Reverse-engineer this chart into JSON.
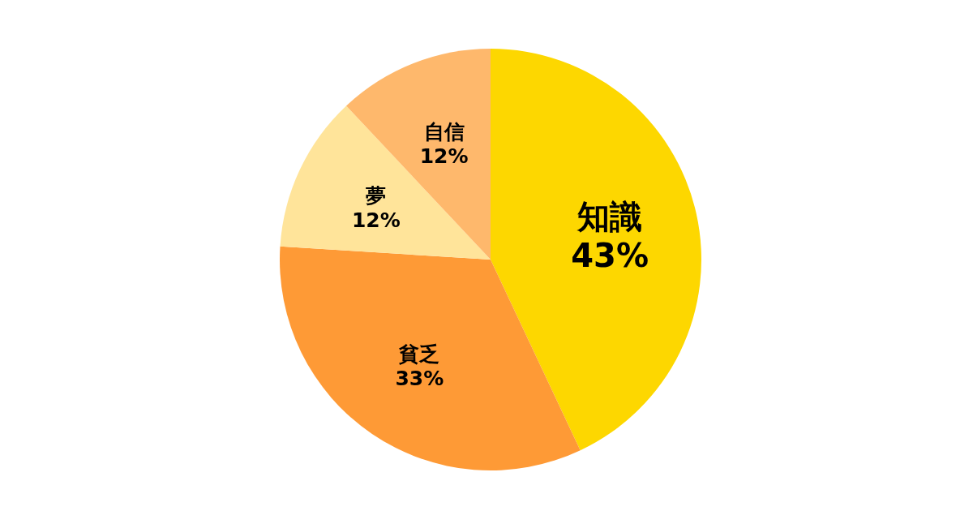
{
  "chart_data": {
    "type": "pie",
    "categories": [
      "知識",
      "貧乏",
      "夢",
      "自信"
    ],
    "values": [
      43,
      33,
      12,
      12
    ],
    "value_labels": [
      "43%",
      "33%",
      "12%",
      "12%"
    ],
    "colors": [
      "#fdd700",
      "#fe9a36",
      "#ffe49a",
      "#feb86c"
    ]
  }
}
